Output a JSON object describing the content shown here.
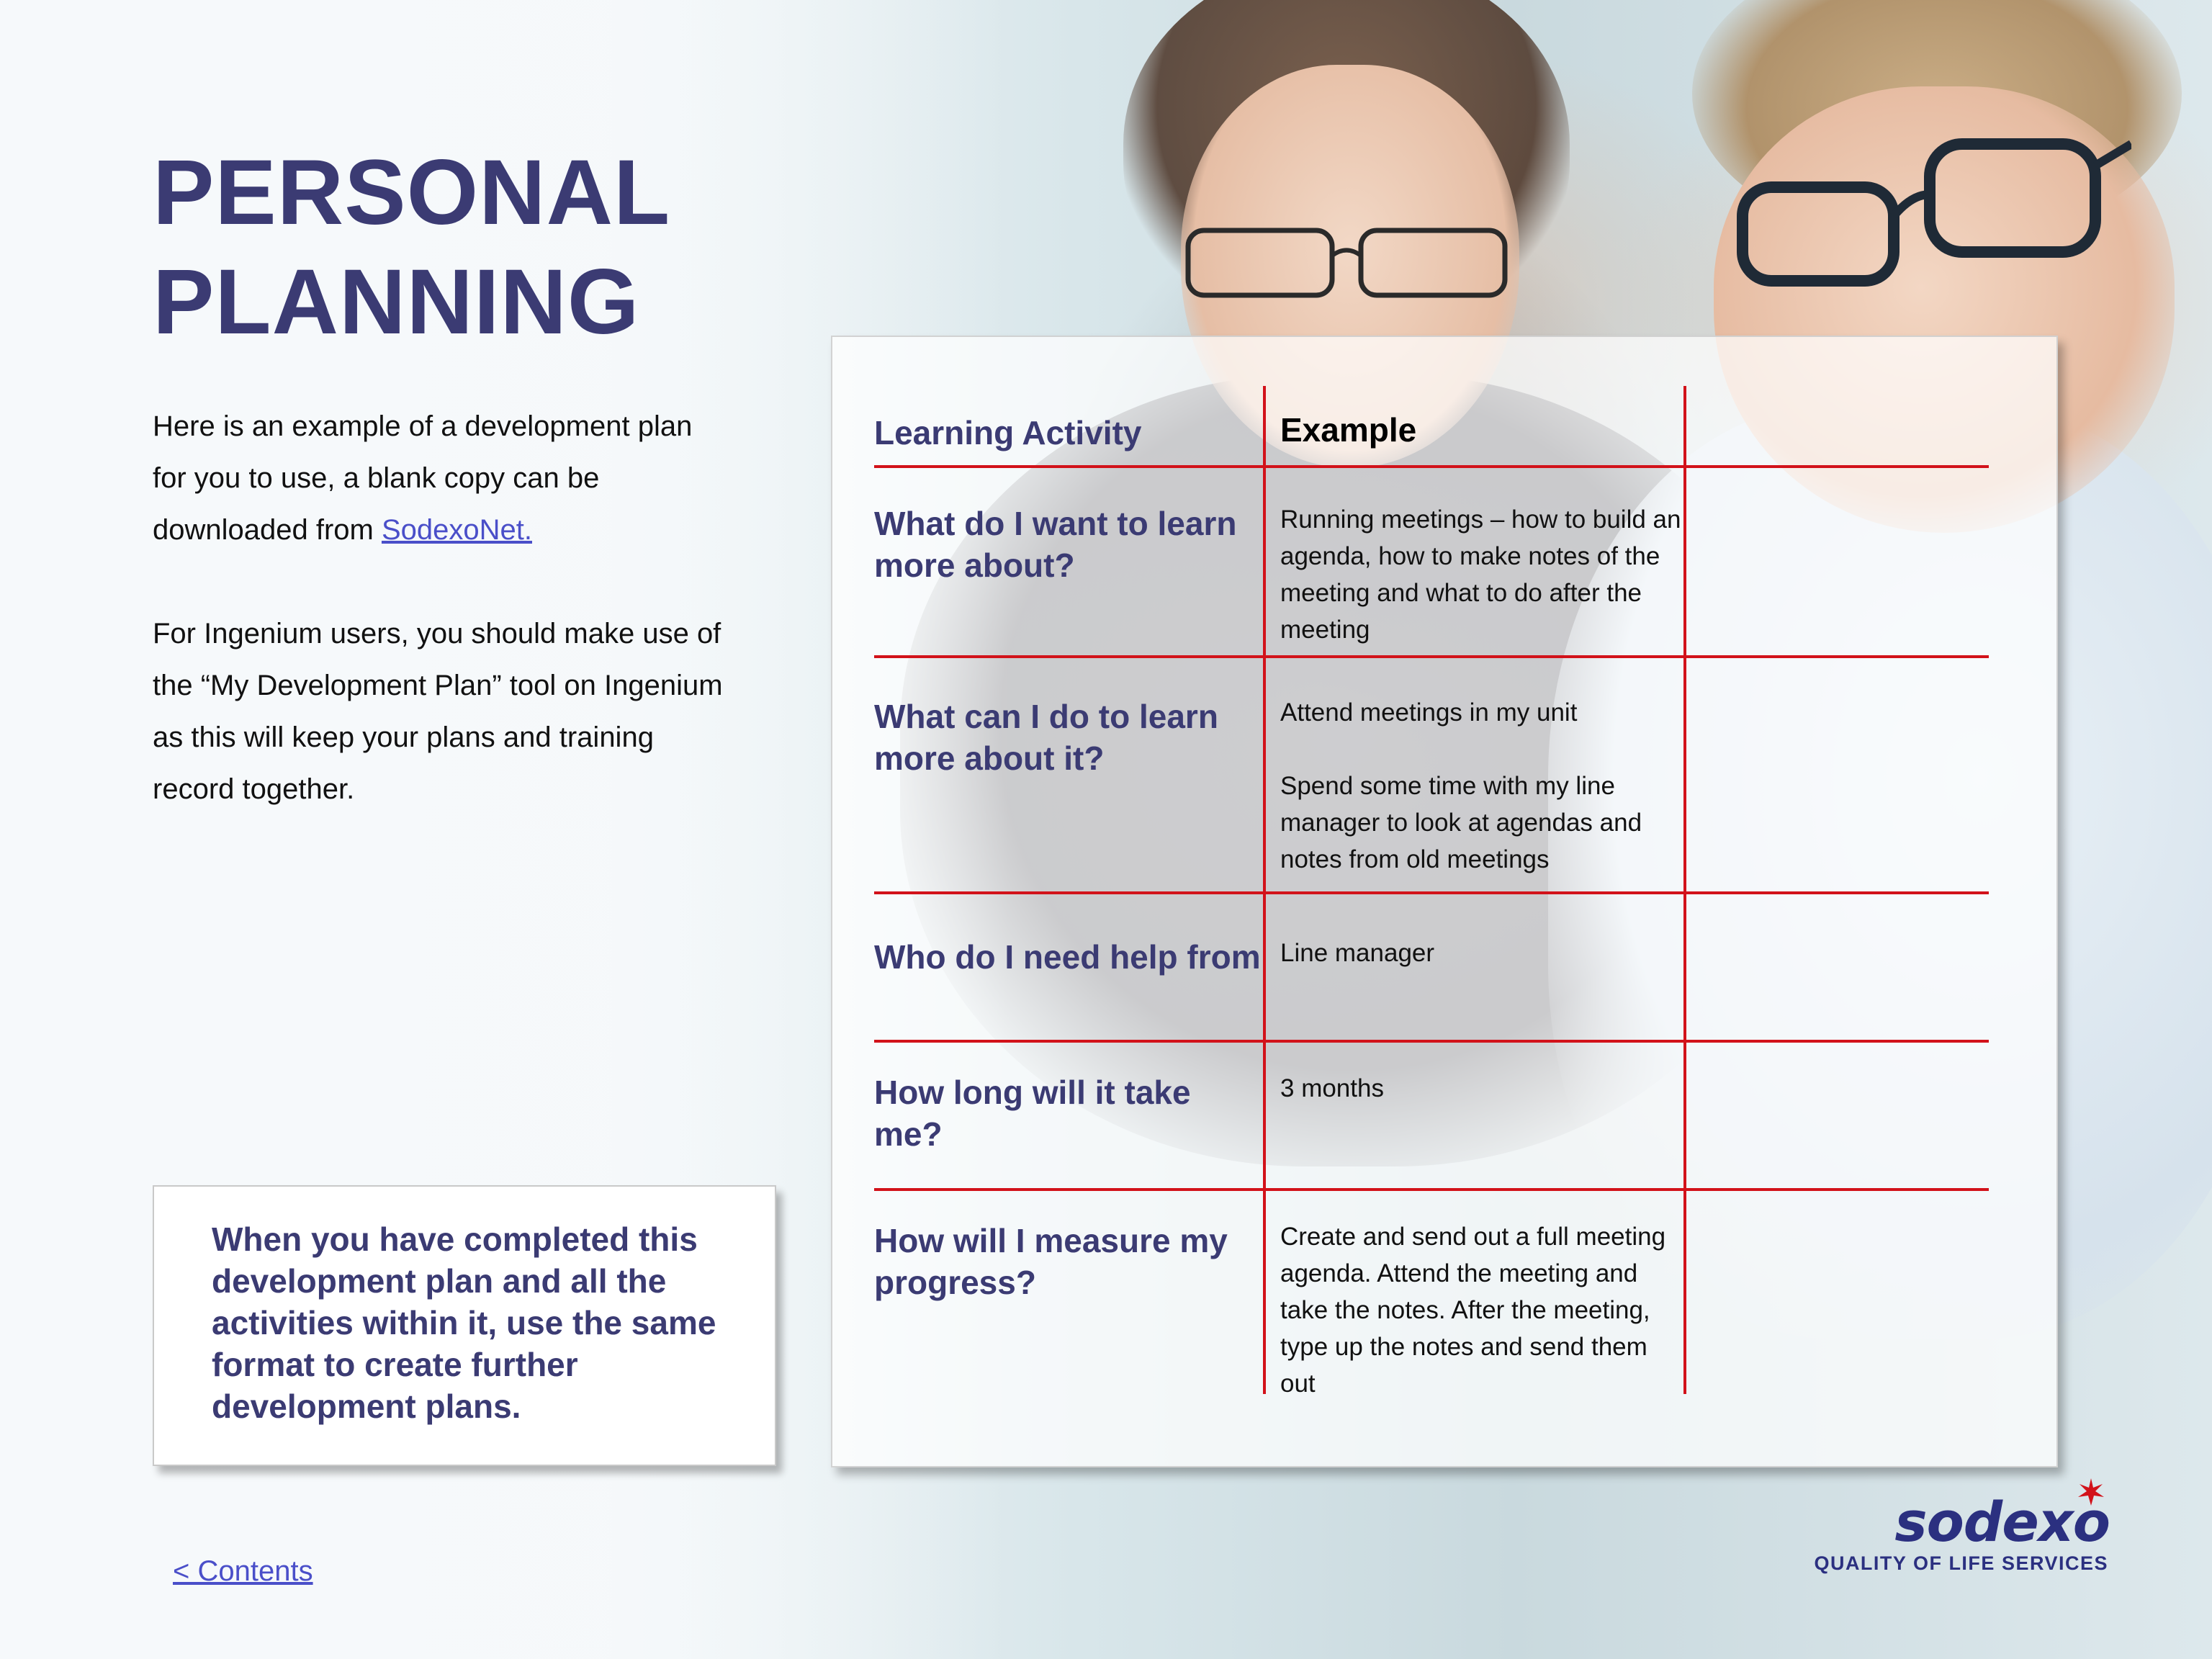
{
  "title": {
    "line1": "PERSONAL",
    "line2": "PLANNING"
  },
  "intro": {
    "p1_before_link": "Here is an example of a development plan for you to use, a blank copy can be downloaded from ",
    "p1_link": "SodexoNet.",
    "p2": "For Ingenium users, you should make use of the “My Development Plan” tool on Ingenium as this will keep your plans and training record together."
  },
  "callout": "When you have completed this development plan and all the activities within it, use the same format to create further development plans.",
  "table": {
    "header_left": "Learning Activity",
    "header_mid": "Example",
    "rows": [
      {
        "question": "What do I want to learn more about?",
        "answer": [
          "Running meetings – how to build an agenda, how to make notes of the meeting and what to do after the meeting"
        ]
      },
      {
        "question": "What can I do to learn more about it?",
        "answer": [
          "Attend meetings in my unit",
          "Spend some time with my line manager to look at agendas and notes from old meetings"
        ]
      },
      {
        "question": "Who do I need help from",
        "answer": [
          "Line manager"
        ]
      },
      {
        "question": "How long will it take me?",
        "answer": [
          "3 months"
        ]
      },
      {
        "question": "How will I measure my progress?",
        "answer": [
          "Create and send out a full meeting agenda. Attend the meeting and take the notes. After the meeting, type up the notes and send them out"
        ]
      }
    ]
  },
  "footer": {
    "contents_link": "< Contents"
  },
  "logo": {
    "wordmark": "sodexo",
    "tagline": "QUALITY OF LIFE SERVICES",
    "icon": "star-icon"
  },
  "colors": {
    "heading": "#3b3b73",
    "rule": "#d2121a",
    "link": "#4a4fc9",
    "brand": "#2b3080"
  }
}
